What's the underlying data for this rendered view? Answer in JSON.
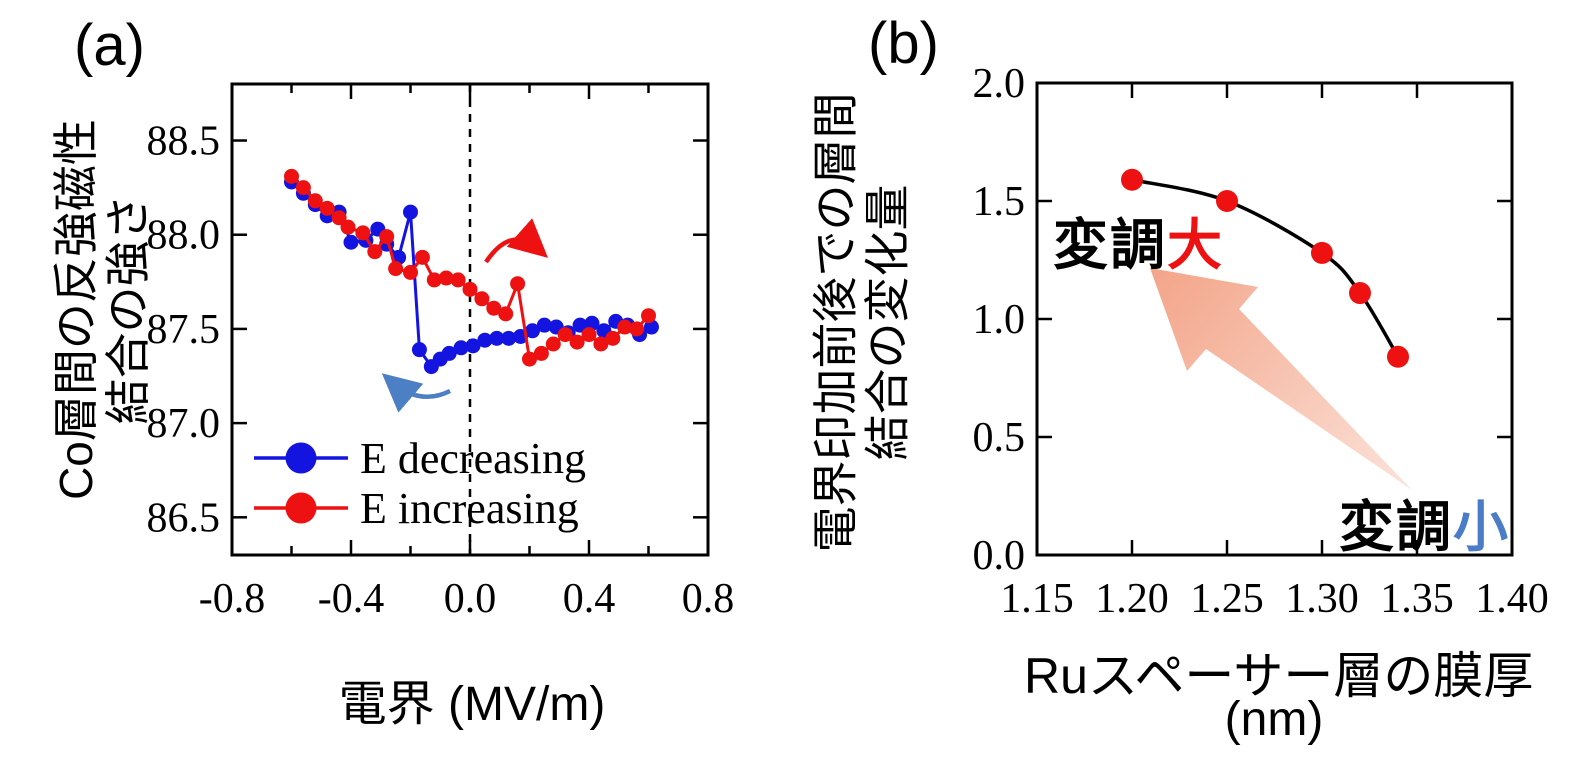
{
  "figure": {
    "background": "#ffffff",
    "accent_red": "#ee1111",
    "accent_blue": "#1414e0",
    "steel_blue": "#4a7cc7",
    "salmon_arrow": [
      "#f3a488",
      "#fbe3da"
    ]
  },
  "panels": {
    "a": {
      "letter": "(a)",
      "ylabel_lines": [
        "Co層間の反強磁性",
        "結合の強さ"
      ],
      "xlabel": "電界 (MV/m)"
    },
    "b": {
      "letter": "(b)",
      "ylabel_lines": [
        "電界印加前後での層間",
        "結合の変化量"
      ],
      "xlabel_lines": [
        "Ruスペーサー層の膜厚",
        "(nm)"
      ],
      "annot_large": {
        "black": "変調",
        "colored": "大",
        "color": "#ee1111"
      },
      "annot_small": {
        "black": "変調",
        "colored": "小",
        "color": "#4a7cc7"
      }
    }
  },
  "chart_data": [
    {
      "type": "line",
      "panel": "a",
      "xlabel": "電界 (MV/m)",
      "ylabel": "Co層間の反強磁性結合の強さ",
      "xlim": [
        -0.8,
        0.8
      ],
      "ylim": [
        86.3,
        88.8
      ],
      "xticks": [
        {
          "v": -0.8,
          "label": "-0.8"
        },
        {
          "v": -0.4,
          "label": "-0.4"
        },
        {
          "v": 0.0,
          "label": "0.0"
        },
        {
          "v": 0.4,
          "label": "0.4"
        },
        {
          "v": 0.8,
          "label": "0.8"
        }
      ],
      "xticks_minor": [
        -0.6,
        -0.2,
        0.2,
        0.6
      ],
      "yticks": [
        {
          "v": 88.5,
          "label": "88.5"
        },
        {
          "v": 88.0,
          "label": "88.0"
        },
        {
          "v": 87.5,
          "label": "87.5"
        },
        {
          "v": 87.0,
          "label": "87.0"
        },
        {
          "v": 86.5,
          "label": "86.5"
        }
      ],
      "vline": {
        "x": 0.0,
        "style": "dashed",
        "color": "#000000"
      },
      "legend_position": "lower-left",
      "series": [
        {
          "name": "E decreasing",
          "color": "#1414e0",
          "points": [
            [
              0.61,
              87.51
            ],
            [
              0.57,
              87.47
            ],
            [
              0.53,
              87.52
            ],
            [
              0.49,
              87.54
            ],
            [
              0.45,
              87.49
            ],
            [
              0.41,
              87.53
            ],
            [
              0.37,
              87.52
            ],
            [
              0.33,
              87.48
            ],
            [
              0.29,
              87.51
            ],
            [
              0.25,
              87.52
            ],
            [
              0.21,
              87.49
            ],
            [
              0.17,
              87.46
            ],
            [
              0.13,
              87.45
            ],
            [
              0.09,
              87.45
            ],
            [
              0.05,
              87.44
            ],
            [
              0.01,
              87.41
            ],
            [
              -0.03,
              87.4
            ],
            [
              -0.07,
              87.37
            ],
            [
              -0.1,
              87.34
            ],
            [
              -0.13,
              87.3
            ],
            [
              -0.17,
              87.39
            ],
            [
              -0.2,
              88.12
            ],
            [
              -0.24,
              87.88
            ],
            [
              -0.28,
              87.95
            ],
            [
              -0.31,
              88.03
            ],
            [
              -0.35,
              87.97
            ],
            [
              -0.4,
              87.96
            ],
            [
              -0.44,
              88.12
            ],
            [
              -0.48,
              88.1
            ],
            [
              -0.52,
              88.16
            ],
            [
              -0.56,
              88.22
            ],
            [
              -0.6,
              88.28
            ]
          ]
        },
        {
          "name": "E increasing",
          "color": "#ee1111",
          "points": [
            [
              -0.6,
              88.31
            ],
            [
              -0.56,
              88.25
            ],
            [
              -0.52,
              88.18
            ],
            [
              -0.48,
              88.14
            ],
            [
              -0.44,
              88.09
            ],
            [
              -0.41,
              88.04
            ],
            [
              -0.36,
              88.01
            ],
            [
              -0.32,
              87.91
            ],
            [
              -0.28,
              87.99
            ],
            [
              -0.25,
              87.82
            ],
            [
              -0.2,
              87.8
            ],
            [
              -0.16,
              87.88
            ],
            [
              -0.12,
              87.76
            ],
            [
              -0.08,
              87.77
            ],
            [
              -0.04,
              87.76
            ],
            [
              0.0,
              87.71
            ],
            [
              0.04,
              87.66
            ],
            [
              0.08,
              87.61
            ],
            [
              0.12,
              87.58
            ],
            [
              0.16,
              87.74
            ],
            [
              0.2,
              87.34
            ],
            [
              0.24,
              87.37
            ],
            [
              0.28,
              87.42
            ],
            [
              0.32,
              87.47
            ],
            [
              0.36,
              87.43
            ],
            [
              0.4,
              87.47
            ],
            [
              0.44,
              87.42
            ],
            [
              0.48,
              87.45
            ],
            [
              0.52,
              87.51
            ],
            [
              0.56,
              87.5
            ],
            [
              0.6,
              87.57
            ]
          ]
        }
      ],
      "annotations": [
        {
          "type": "curved-arrow",
          "color": "#ee1111",
          "meaning": "E increasing sweep (clockwise)"
        },
        {
          "type": "curved-arrow",
          "color": "#4d7fc4",
          "meaning": "E decreasing sweep (counterclockwise)"
        }
      ]
    },
    {
      "type": "scatter",
      "panel": "b",
      "xlabel": "Ruスペーサー層の膜厚 (nm)",
      "ylabel": "電界印加前後での層間結合の変化量",
      "xlim": [
        1.15,
        1.4
      ],
      "ylim": [
        0.0,
        2.0
      ],
      "xticks": [
        {
          "v": 1.15,
          "label": "1.15"
        },
        {
          "v": 1.2,
          "label": "1.20"
        },
        {
          "v": 1.25,
          "label": "1.25"
        },
        {
          "v": 1.3,
          "label": "1.30"
        },
        {
          "v": 1.35,
          "label": "1.35"
        },
        {
          "v": 1.4,
          "label": "1.40"
        }
      ],
      "yticks": [
        {
          "v": 2.0,
          "label": "2.0"
        },
        {
          "v": 1.5,
          "label": "1.5"
        },
        {
          "v": 1.0,
          "label": "1.0"
        },
        {
          "v": 0.5,
          "label": "0.5"
        },
        {
          "v": 0.0,
          "label": "0.0"
        }
      ],
      "points": [
        [
          1.2,
          1.59
        ],
        [
          1.25,
          1.5
        ],
        [
          1.3,
          1.28
        ],
        [
          1.32,
          1.11
        ],
        [
          1.34,
          0.84
        ]
      ],
      "point_color": "#ee1111",
      "fit_curve_color": "#000000",
      "annotations": [
        {
          "text": "変調大",
          "colored_char_color": "#ee1111",
          "position": "upper-left"
        },
        {
          "text": "変調小",
          "colored_char_color": "#4a7cc7",
          "position": "lower-right"
        },
        {
          "type": "big-arrow",
          "gradient": [
            "#f3a488",
            "#fbe3da"
          ],
          "direction": "to-upper-left",
          "meaning": "thinner spacer gives larger modulation"
        }
      ]
    }
  ]
}
